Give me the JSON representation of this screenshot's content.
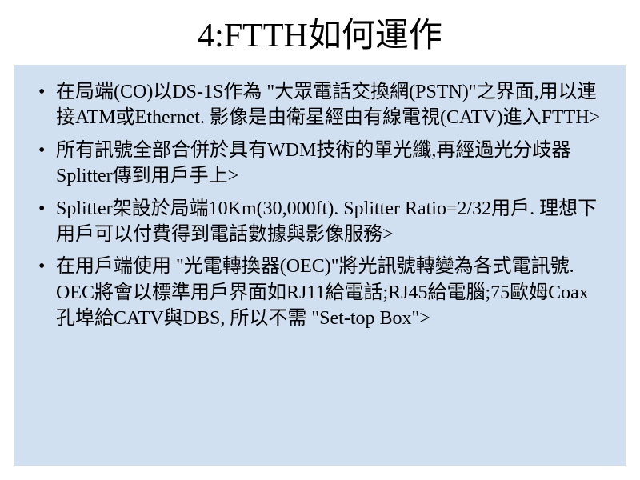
{
  "slide": {
    "title": "4:FTTH如何運作",
    "background_color": "#ffffff",
    "content_background_color": "#d0e0f0",
    "text_color": "#000000",
    "title_fontsize": 42,
    "body_fontsize": 24,
    "bullets": [
      "在局端(CO)以DS-1S作為 \"大眾電話交換網(PSTN)\"之界面,用以連接ATM或Ethernet. 影像是由衛星經由有線電視(CATV)進入FTTH>",
      "所有訊號全部合併於具有WDM技術的單光纖,再經過光分歧器Splitter傳到用戶手上>",
      "Splitter架設於局端10Km(30,000ft). Splitter Ratio=2/32用戶. 理想下用戶可以付費得到電話數據與影像服務>",
      "在用戶端使用 \"光電轉換器(OEC)\"將光訊號轉變為各式電訊號. OEC將會以標準用戶界面如RJ11給電話;RJ45給電腦;75歐姆Coax孔埠給CATV與DBS, 所以不需 \"Set-top Box\">"
    ]
  }
}
